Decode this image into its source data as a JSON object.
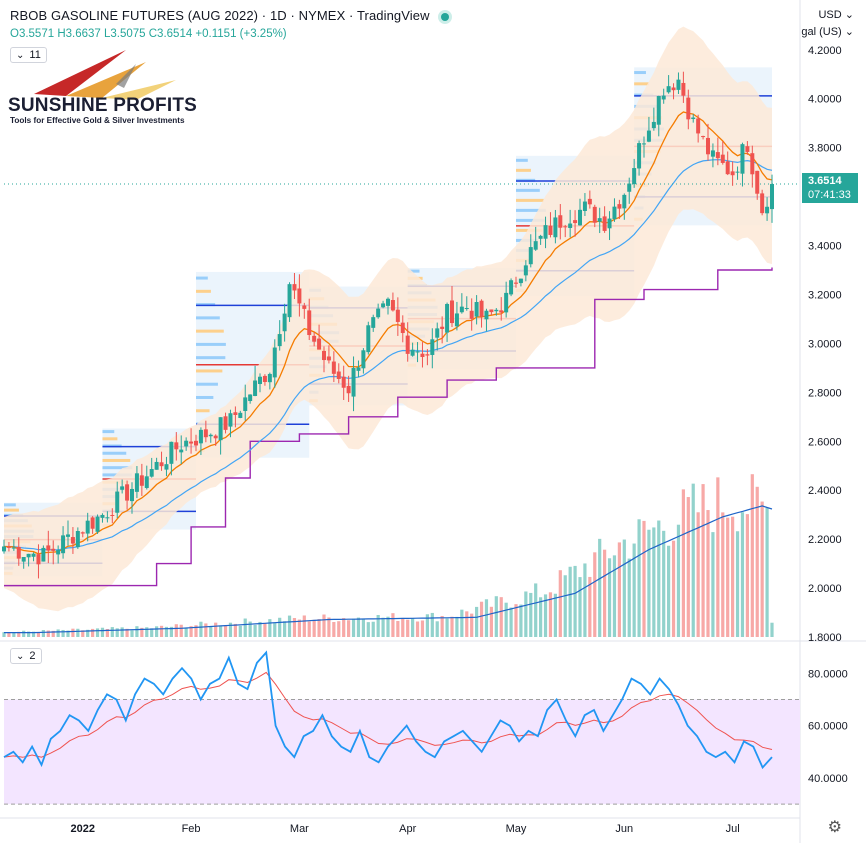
{
  "header": {
    "title": "RBOB GASOLINE FUTURES (AUG 2022) · 1D · NYMEX · TradingView",
    "ohlc": "O3.5571 H3.6637 L3.5075 C3.6514 +0.1151 (+3.25%)",
    "collapse_badge": "11",
    "currency": "USD",
    "unit": "gal (US)"
  },
  "logo": {
    "name": "SUNSHINE PROFITS",
    "tagline": "Tools for Effective Gold & Silver Investments"
  },
  "price_tag": {
    "value": "3.6514",
    "countdown": "07:41:33"
  },
  "rsi_badge": "2",
  "colors": {
    "up": "#26a69a",
    "down": "#ef5350",
    "ema_short": "#f57c00",
    "ma_long": "#42a5f5",
    "step_line": "#9c27b0",
    "rsi_line": "#2196f3",
    "rsi_signal": "#ef5350",
    "rsi_band": "#f3e5ff",
    "bands": "#fde9d7"
  },
  "chart_data": [
    {
      "type": "candlestick",
      "title": "RBOB GASOLINE FUTURES (AUG 2022) · 1D · NYMEX · TradingView",
      "x_ticks": [
        "2022",
        "Feb",
        "Mar",
        "Apr",
        "May",
        "Jun",
        "Jul"
      ],
      "y_ticks": [
        "1.8000",
        "2.0000",
        "2.2000",
        "2.4000",
        "2.6000",
        "2.8000",
        "3.0000",
        "3.2000",
        "3.4000",
        "3.6000",
        "3.8000",
        "4.0000",
        "4.2000"
      ],
      "ylim": [
        1.8,
        4.24
      ],
      "last_price": 3.6514,
      "anchors": [
        {
          "day": 0,
          "price": 2.17
        },
        {
          "day": 8,
          "price": 2.13
        },
        {
          "day": 14,
          "price": 2.22
        },
        {
          "day": 20,
          "price": 2.3
        },
        {
          "day": 26,
          "price": 2.41
        },
        {
          "day": 31,
          "price": 2.5
        },
        {
          "day": 36,
          "price": 2.59
        },
        {
          "day": 41,
          "price": 2.63
        },
        {
          "day": 46,
          "price": 2.68
        },
        {
          "day": 50,
          "price": 2.8
        },
        {
          "day": 54,
          "price": 2.9
        },
        {
          "day": 58,
          "price": 3.25
        },
        {
          "day": 62,
          "price": 3.05
        },
        {
          "day": 66,
          "price": 2.9
        },
        {
          "day": 70,
          "price": 2.82
        },
        {
          "day": 74,
          "price": 3.05
        },
        {
          "day": 78,
          "price": 3.15
        },
        {
          "day": 82,
          "price": 3.0
        },
        {
          "day": 86,
          "price": 2.96
        },
        {
          "day": 90,
          "price": 3.12
        },
        {
          "day": 94,
          "price": 3.15
        },
        {
          "day": 98,
          "price": 3.1
        },
        {
          "day": 102,
          "price": 3.18
        },
        {
          "day": 106,
          "price": 3.35
        },
        {
          "day": 110,
          "price": 3.45
        },
        {
          "day": 114,
          "price": 3.52
        },
        {
          "day": 118,
          "price": 3.55
        },
        {
          "day": 122,
          "price": 3.5
        },
        {
          "day": 126,
          "price": 3.62
        },
        {
          "day": 130,
          "price": 3.85
        },
        {
          "day": 134,
          "price": 4.05
        },
        {
          "day": 137,
          "price": 4.08
        },
        {
          "day": 140,
          "price": 3.9
        },
        {
          "day": 144,
          "price": 3.75
        },
        {
          "day": 148,
          "price": 3.7
        },
        {
          "day": 151,
          "price": 3.82
        },
        {
          "day": 154,
          "price": 3.55
        },
        {
          "day": 156,
          "price": 3.6514
        }
      ],
      "volume_ylim": [
        0,
        1
      ],
      "volume_anchors": [
        {
          "day": 0,
          "v": 0.02
        },
        {
          "day": 30,
          "v": 0.04
        },
        {
          "day": 60,
          "v": 0.08
        },
        {
          "day": 90,
          "v": 0.09
        },
        {
          "day": 110,
          "v": 0.2
        },
        {
          "day": 125,
          "v": 0.4
        },
        {
          "day": 140,
          "v": 0.55
        },
        {
          "day": 148,
          "v": 0.6
        },
        {
          "day": 155,
          "v": 0.55
        },
        {
          "day": 156,
          "v": 0.08
        }
      ],
      "levels": {
        "step_line": [
          {
            "day": 0,
            "price": 2.01
          },
          {
            "day": 30,
            "price": 2.01
          },
          {
            "day": 31,
            "price": 2.1
          },
          {
            "day": 38,
            "price": 2.25
          },
          {
            "day": 45,
            "price": 2.45
          },
          {
            "day": 50,
            "price": 2.6
          },
          {
            "day": 60,
            "price": 2.63
          },
          {
            "day": 70,
            "price": 2.7
          },
          {
            "day": 80,
            "price": 2.78
          },
          {
            "day": 90,
            "price": 2.85
          },
          {
            "day": 100,
            "price": 2.9
          },
          {
            "day": 118,
            "price": 2.9
          },
          {
            "day": 120,
            "price": 3.18
          },
          {
            "day": 130,
            "price": 3.22
          },
          {
            "day": 145,
            "price": 3.3
          },
          {
            "day": 156,
            "price": 3.31
          }
        ]
      }
    },
    {
      "type": "line",
      "title": "RSI",
      "y_ticks": [
        "40.0000",
        "60.0000",
        "80.0000"
      ],
      "ylim": [
        27,
        92
      ],
      "bands": [
        30,
        70
      ],
      "series": [
        {
          "values": [
            48,
            50,
            46,
            52,
            45,
            55,
            58,
            64,
            62,
            58,
            66,
            72,
            70,
            62,
            72,
            78,
            76,
            72,
            78,
            82,
            78,
            70,
            76,
            78,
            86,
            76,
            74,
            84,
            88,
            60,
            52,
            48,
            56,
            58,
            64,
            56,
            52,
            50,
            58,
            48,
            46,
            52,
            56,
            60,
            54,
            50,
            48,
            54,
            56,
            58,
            54,
            50,
            56,
            62,
            60,
            54,
            58,
            56,
            66,
            70,
            62,
            56,
            64,
            66,
            58,
            64,
            70,
            78,
            76,
            72,
            78,
            74,
            68,
            60,
            56,
            50,
            48,
            50,
            46,
            54,
            52,
            44,
            48
          ]
        }
      ]
    }
  ]
}
